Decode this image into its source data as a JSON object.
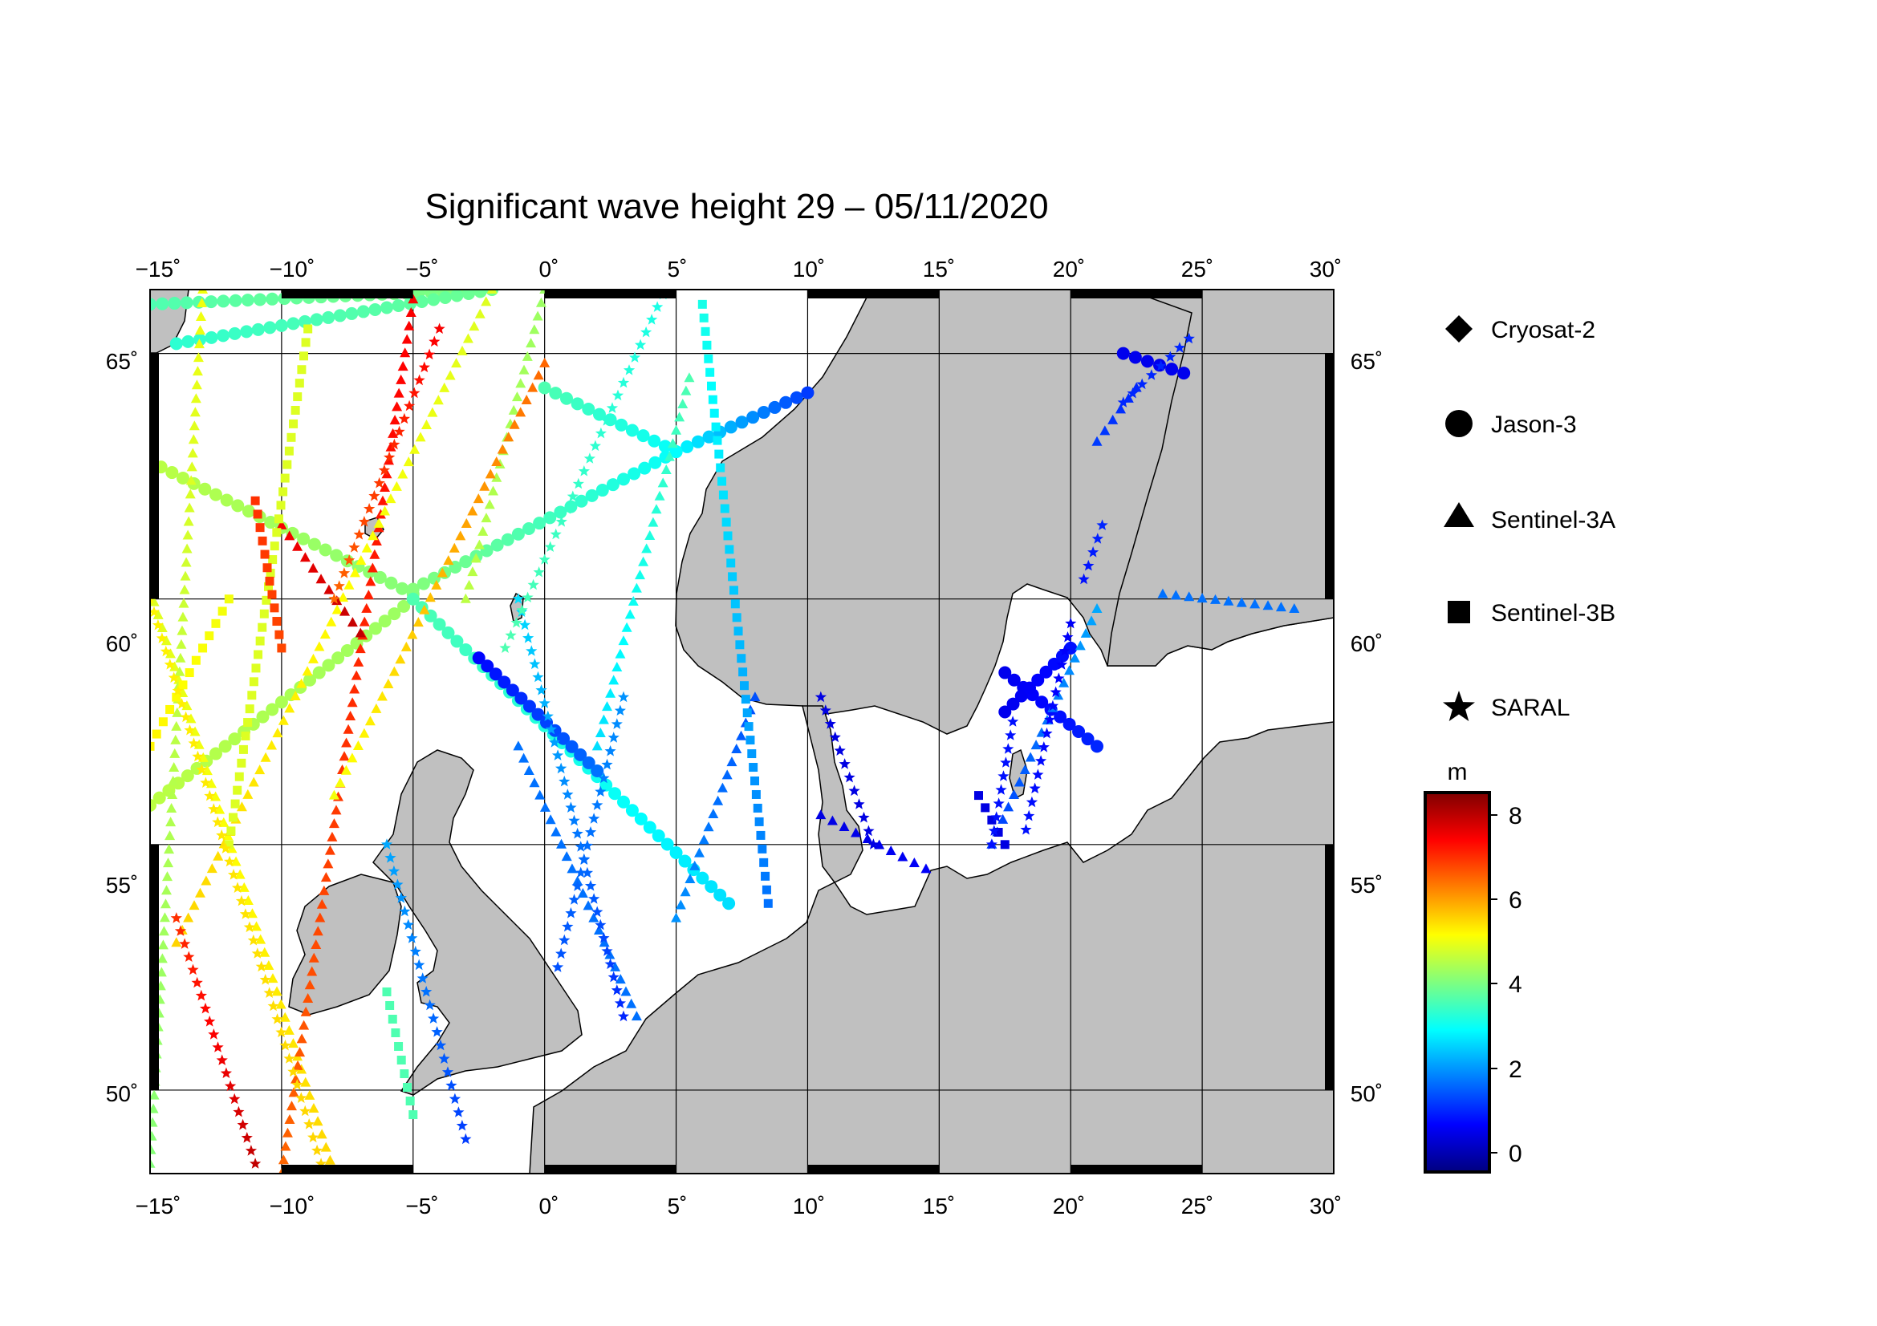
{
  "title": "Significant wave height 29 – 05/11/2020",
  "map": {
    "lon_range": [
      -15,
      30
    ],
    "lat_range": [
      48.3,
      66.3
    ],
    "lon_ticks": [
      "−15˚",
      "−10˚",
      "−5˚",
      "0˚",
      "5˚",
      "10˚",
      "15˚",
      "20˚",
      "25˚",
      "30˚"
    ],
    "lat_ticks": [
      "50˚",
      "55˚",
      "60˚",
      "65˚"
    ],
    "land_color": "#c0c0c0",
    "sea_color": "#ffffff"
  },
  "legend": {
    "items": [
      {
        "label": "Cryosat-2",
        "marker": "diamond"
      },
      {
        "label": "Jason-3",
        "marker": "circle"
      },
      {
        "label": "Sentinel-3A",
        "marker": "triangle"
      },
      {
        "label": "Sentinel-3B",
        "marker": "square"
      },
      {
        "label": "SARAL",
        "marker": "star"
      }
    ]
  },
  "colorbar": {
    "unit": "m",
    "range": [
      -0.7,
      8.6
    ],
    "ticks": [
      "8",
      "6",
      "4",
      "2",
      "0"
    ],
    "colors": [
      "#00007f",
      "#0000ff",
      "#007fff",
      "#00ffff",
      "#7fff7f",
      "#ffff00",
      "#ff7f00",
      "#ff0000",
      "#7f0000"
    ]
  },
  "chart_data": {
    "type": "scatter",
    "title": "Significant wave height 29 – 05/11/2020",
    "xlabel": "",
    "ylabel": "",
    "xlim": [
      -15,
      30
    ],
    "ylim": [
      48.3,
      66.3
    ],
    "color_variable": "m",
    "tracks": [
      {
        "satellite": "Jason-3",
        "marker": "circle",
        "start": [
          -15,
          66
        ],
        "end": [
          -2,
          66.3
        ],
        "swh_start": 3.5,
        "swh_end": 4.0
      },
      {
        "satellite": "Jason-3",
        "marker": "circle",
        "start": [
          -14,
          65.2
        ],
        "end": [
          -2,
          66.3
        ],
        "swh_start": 3.2,
        "swh_end": 3.8
      },
      {
        "satellite": "Jason-3",
        "marker": "circle",
        "start": [
          0,
          64.3
        ],
        "end": [
          5,
          63
        ],
        "swh_start": 3.5,
        "swh_end": 2.8
      },
      {
        "satellite": "Jason-3",
        "marker": "circle",
        "start": [
          5,
          63
        ],
        "end": [
          10,
          64.2
        ],
        "swh_start": 2.8,
        "swh_end": 1.0
      },
      {
        "satellite": "Jason-3",
        "marker": "circle",
        "start": [
          -15,
          62.8
        ],
        "end": [
          -5,
          60.1
        ],
        "swh_start": 4.5,
        "swh_end": 4.0
      },
      {
        "satellite": "Jason-3",
        "marker": "circle",
        "start": [
          -5,
          60.2
        ],
        "end": [
          5,
          63
        ],
        "swh_start": 4.0,
        "swh_end": 2.8
      },
      {
        "satellite": "Jason-3",
        "marker": "circle",
        "start": [
          -15,
          55.8
        ],
        "end": [
          -5,
          60
        ],
        "swh_start": 4.5,
        "swh_end": 4.2
      },
      {
        "satellite": "Jason-3",
        "marker": "circle",
        "start": [
          -5,
          60
        ],
        "end": [
          7,
          53.8
        ],
        "swh_start": 3.5,
        "swh_end": 2.5
      },
      {
        "satellite": "Jason-3",
        "marker": "circle",
        "start": [
          -2.5,
          58.8
        ],
        "end": [
          2,
          56.5
        ],
        "swh_start": 0.5,
        "swh_end": 1.5
      },
      {
        "satellite": "Jason-3",
        "marker": "circle",
        "start": [
          22,
          65
        ],
        "end": [
          24.3,
          64.6
        ],
        "swh_start": 0.3,
        "swh_end": 0.3
      },
      {
        "satellite": "Jason-3",
        "marker": "circle",
        "start": [
          17.5,
          58.5
        ],
        "end": [
          21,
          57
        ],
        "swh_start": 0.3,
        "swh_end": 0.8
      },
      {
        "satellite": "Jason-3",
        "marker": "circle",
        "start": [
          17.5,
          57.7
        ],
        "end": [
          20,
          59
        ],
        "swh_start": 0.3,
        "swh_end": 0.6
      },
      {
        "satellite": "Sentinel-3A",
        "marker": "triangle",
        "start": [
          -15,
          60.2
        ],
        "end": [
          -8,
          48.3
        ],
        "swh_start": 4.8,
        "swh_end": 5.5
      },
      {
        "satellite": "Sentinel-3A",
        "marker": "triangle",
        "start": [
          -13,
          66.3
        ],
        "end": [
          -15,
          48.5
        ],
        "swh_start": 5.0,
        "swh_end": 4.0
      },
      {
        "satellite": "Sentinel-3A",
        "marker": "triangle",
        "start": [
          -5,
          66.1
        ],
        "end": [
          -10,
          48.3
        ],
        "swh_start": 7.5,
        "swh_end": 6.5
      },
      {
        "satellite": "Sentinel-3A",
        "marker": "triangle",
        "start": [
          -2,
          66.3
        ],
        "end": [
          -14,
          53
        ],
        "swh_start": 4.8,
        "swh_end": 5.5
      },
      {
        "satellite": "Sentinel-3A",
        "marker": "triangle",
        "start": [
          -10,
          61.5
        ],
        "end": [
          -7,
          59.3
        ],
        "swh_start": 7.5,
        "swh_end": 8.0
      },
      {
        "satellite": "Sentinel-3A",
        "marker": "triangle",
        "start": [
          0,
          66.3
        ],
        "end": [
          -3,
          60
        ],
        "swh_start": 4.2,
        "swh_end": 4.5
      },
      {
        "satellite": "Sentinel-3A",
        "marker": "triangle",
        "start": [
          0,
          64.8
        ],
        "end": [
          -8,
          56
        ],
        "swh_start": 6.5,
        "swh_end": 5.0
      },
      {
        "satellite": "Sentinel-3A",
        "marker": "triangle",
        "start": [
          5.5,
          64.5
        ],
        "end": [
          2,
          57
        ],
        "swh_start": 3.5,
        "swh_end": 2.5
      },
      {
        "satellite": "Sentinel-3A",
        "marker": "triangle",
        "start": [
          -1,
          57
        ],
        "end": [
          3.5,
          51.5
        ],
        "swh_start": 1.5,
        "swh_end": 1.5
      },
      {
        "satellite": "Sentinel-3A",
        "marker": "triangle",
        "start": [
          8,
          58
        ],
        "end": [
          5,
          53.5
        ],
        "swh_start": 1.2,
        "swh_end": 1.8
      },
      {
        "satellite": "Sentinel-3A",
        "marker": "triangle",
        "start": [
          10.5,
          55.6
        ],
        "end": [
          14.5,
          54.5
        ],
        "swh_start": 0.2,
        "swh_end": 0.4
      },
      {
        "satellite": "Sentinel-3A",
        "marker": "triangle",
        "start": [
          21,
          59.8
        ],
        "end": [
          17,
          55
        ],
        "swh_start": 2.0,
        "swh_end": 1.0
      },
      {
        "satellite": "Sentinel-3A",
        "marker": "triangle",
        "start": [
          22.5,
          64.3
        ],
        "end": [
          21,
          63.2
        ],
        "swh_start": 0.8,
        "swh_end": 1.0
      },
      {
        "satellite": "Sentinel-3A",
        "marker": "triangle",
        "start": [
          23.5,
          60.1
        ],
        "end": [
          28.5,
          59.8
        ],
        "swh_start": 1.5,
        "swh_end": 1.5
      },
      {
        "satellite": "Sentinel-3B",
        "marker": "square",
        "start": [
          -9,
          65.5
        ],
        "end": [
          -12,
          55
        ],
        "swh_start": 4.8,
        "swh_end": 4.8
      },
      {
        "satellite": "Sentinel-3B",
        "marker": "square",
        "start": [
          -11,
          62
        ],
        "end": [
          -10,
          59
        ],
        "swh_start": 7.0,
        "swh_end": 6.8
      },
      {
        "satellite": "Sentinel-3B",
        "marker": "square",
        "start": [
          -12,
          60
        ],
        "end": [
          -15,
          57
        ],
        "swh_start": 5.0,
        "swh_end": 5.2
      },
      {
        "satellite": "Sentinel-3B",
        "marker": "square",
        "start": [
          -6,
          52
        ],
        "end": [
          -5,
          49.5
        ],
        "swh_start": 3.5,
        "swh_end": 3.5
      },
      {
        "satellite": "Sentinel-3B",
        "marker": "square",
        "start": [
          6,
          66
        ],
        "end": [
          8.5,
          53.8
        ],
        "swh_start": 3.0,
        "swh_end": 1.5
      },
      {
        "satellite": "Sentinel-3B",
        "marker": "square",
        "start": [
          16.5,
          56
        ],
        "end": [
          17.5,
          55
        ],
        "swh_start": 0.2,
        "swh_end": 0.2
      },
      {
        "satellite": "SARAL",
        "marker": "star",
        "start": [
          -14,
          53.5
        ],
        "end": [
          -11,
          48.5
        ],
        "swh_start": 7.0,
        "swh_end": 8.0
      },
      {
        "satellite": "SARAL",
        "marker": "star",
        "start": [
          -15,
          60
        ],
        "end": [
          -8.5,
          48.5
        ],
        "swh_start": 5.2,
        "swh_end": 5.5
      },
      {
        "satellite": "SARAL",
        "marker": "star",
        "start": [
          -4,
          65.5
        ],
        "end": [
          -8,
          60
        ],
        "swh_start": 7.5,
        "swh_end": 6.5
      },
      {
        "satellite": "SARAL",
        "marker": "star",
        "start": [
          -6,
          55
        ],
        "end": [
          -3,
          49
        ],
        "swh_start": 2.0,
        "swh_end": 1.0
      },
      {
        "satellite": "SARAL",
        "marker": "star",
        "start": [
          -1,
          60
        ],
        "end": [
          3,
          51.5
        ],
        "swh_start": 2.5,
        "swh_end": 0.8
      },
      {
        "satellite": "SARAL",
        "marker": "star",
        "start": [
          4.5,
          66.2
        ],
        "end": [
          -1.5,
          59
        ],
        "swh_start": 3.0,
        "swh_end": 3.5
      },
      {
        "satellite": "SARAL",
        "marker": "star",
        "start": [
          3,
          58
        ],
        "end": [
          0.5,
          52.5
        ],
        "swh_start": 1.8,
        "swh_end": 1.2
      },
      {
        "satellite": "SARAL",
        "marker": "star",
        "start": [
          10.5,
          58
        ],
        "end": [
          12.5,
          55
        ],
        "swh_start": 0.2,
        "swh_end": 0.2
      },
      {
        "satellite": "SARAL",
        "marker": "star",
        "start": [
          24.5,
          65.3
        ],
        "end": [
          22,
          64
        ],
        "swh_start": 0.8,
        "swh_end": 0.8
      },
      {
        "satellite": "SARAL",
        "marker": "star",
        "start": [
          21.2,
          61.5
        ],
        "end": [
          20.5,
          60.4
        ],
        "swh_start": 0.8,
        "swh_end": 0.6
      },
      {
        "satellite": "SARAL",
        "marker": "star",
        "start": [
          20,
          59.5
        ],
        "end": [
          18.3,
          55.3
        ],
        "swh_start": 0.4,
        "swh_end": 0.6
      },
      {
        "satellite": "SARAL",
        "marker": "star",
        "start": [
          17.8,
          57.5
        ],
        "end": [
          17,
          55
        ],
        "swh_start": 0.6,
        "swh_end": 0.6
      }
    ]
  }
}
